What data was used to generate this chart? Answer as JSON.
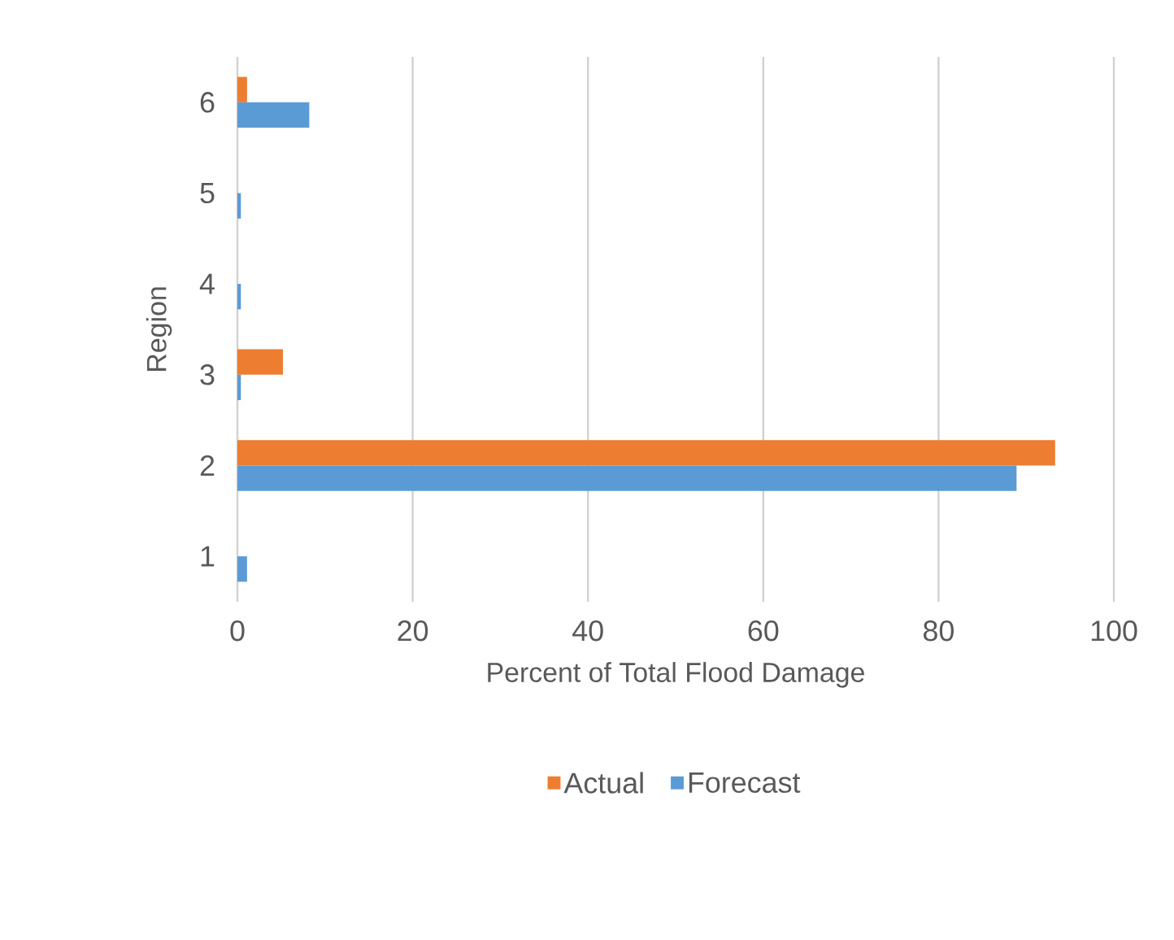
{
  "chart_data": {
    "type": "bar",
    "orientation": "horizontal",
    "xlabel": "Percent of Total Flood Damage",
    "ylabel": "Region",
    "categories": [
      "6",
      "5",
      "4",
      "3",
      "2",
      "1"
    ],
    "series": [
      {
        "name": "Actual",
        "color": "#ed7d31",
        "values": [
          1.1,
          0,
          0,
          5.2,
          93.3,
          0
        ]
      },
      {
        "name": "Forecast",
        "color": "#5b9bd5",
        "values": [
          8.2,
          0.4,
          0.4,
          0.4,
          88.9,
          1.1
        ]
      }
    ],
    "xlim": [
      0,
      100
    ],
    "xticks": [
      0,
      20,
      40,
      60,
      80,
      100
    ],
    "grid": "x",
    "legend": "bottom"
  }
}
